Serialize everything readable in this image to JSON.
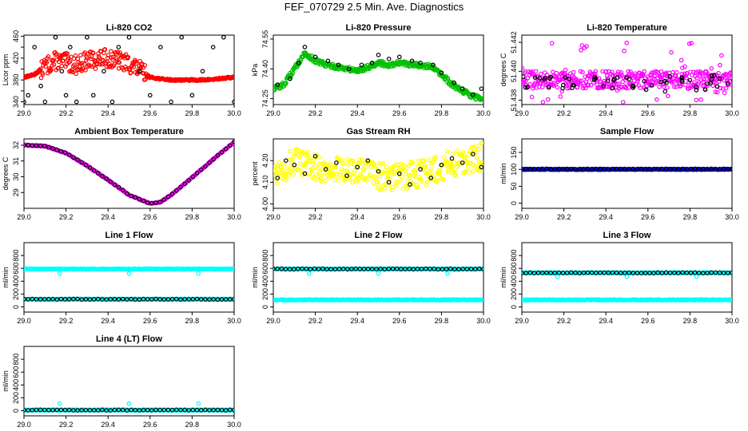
{
  "title": "FEF_070729  2.5 Min. Ave. Diagnostics",
  "chart_data": [
    {
      "type": "scatter",
      "title": "Li-820 CO2",
      "ylabel": "Licor ppm",
      "xlim": [
        29.0,
        30.0
      ],
      "xticks": [
        29.0,
        29.2,
        29.4,
        29.6,
        29.8,
        30.0
      ],
      "ylim": [
        335,
        462
      ],
      "yticks": [
        340,
        360,
        380,
        400,
        420,
        440,
        460
      ],
      "ytick_labels": [
        "340",
        "",
        "380",
        "",
        "420",
        "",
        "460"
      ],
      "color": "#ff0000",
      "gen": "co2",
      "series": [
        {
          "name": "Li-820 CO2",
          "color": "#ff0000",
          "x": [
            29.0,
            29.05,
            29.1,
            29.15,
            29.2,
            29.25,
            29.3,
            29.35,
            29.4,
            29.45,
            29.5,
            29.55,
            29.6,
            29.65,
            29.7,
            29.75,
            29.8,
            29.85,
            29.9,
            29.95,
            30.0
          ],
          "y": [
            385,
            390,
            405,
            415,
            412,
            408,
            415,
            418,
            420,
            415,
            410,
            398,
            385,
            382,
            380,
            380,
            380,
            380,
            381,
            383,
            385
          ]
        }
      ],
      "ref": {
        "name": "reference",
        "color": "#000000",
        "x": [
          29.0,
          29.02,
          29.05,
          29.08,
          29.1,
          29.15,
          29.18,
          29.2,
          29.22,
          29.25,
          29.3,
          29.33,
          29.38,
          29.42,
          29.45,
          29.5,
          29.55,
          29.6,
          29.65,
          29.7,
          29.75,
          29.8,
          29.85,
          29.9,
          29.95,
          30.0
        ],
        "y": [
          340,
          352,
          440,
          369,
          340,
          458,
          396,
          352,
          440,
          340,
          458,
          352,
          396,
          340,
          440,
          458,
          396,
          352,
          440,
          340,
          458,
          352,
          396,
          440,
          458,
          340
        ]
      }
    },
    {
      "type": "scatter",
      "title": "Li-820 Pressure",
      "ylabel": "kPa",
      "xlim": [
        29.0,
        30.0
      ],
      "xticks": [
        29.0,
        29.2,
        29.4,
        29.6,
        29.8,
        30.0
      ],
      "ylim": [
        74.22,
        74.57
      ],
      "yticks": [
        74.25,
        74.4,
        74.55
      ],
      "ytick_labels": [
        "74.25",
        "74.40",
        "74.55"
      ],
      "color": "#00c000",
      "gen": "pressure",
      "series": [
        {
          "name": "Li-820 Pressure",
          "color": "#00c000",
          "x": [
            29.0,
            29.05,
            29.1,
            29.15,
            29.2,
            29.25,
            29.3,
            29.35,
            29.4,
            29.45,
            29.5,
            29.55,
            29.6,
            29.65,
            29.7,
            29.75,
            29.8,
            29.85,
            29.9,
            29.95,
            30.0
          ],
          "y": [
            74.3,
            74.32,
            74.4,
            74.48,
            74.44,
            74.42,
            74.41,
            74.4,
            74.39,
            74.41,
            74.43,
            74.42,
            74.43,
            74.42,
            74.42,
            74.41,
            74.37,
            74.32,
            74.29,
            74.26,
            74.25
          ]
        }
      ],
      "ref": {
        "name": "reference",
        "color": "#000000",
        "x": [
          29.02,
          29.08,
          29.12,
          29.15,
          29.2,
          29.26,
          29.31,
          29.36,
          29.42,
          29.47,
          29.5,
          29.55,
          29.6,
          29.66,
          29.7,
          29.76,
          29.8,
          29.86,
          29.9,
          29.95,
          29.99
        ],
        "y": [
          74.32,
          74.35,
          74.43,
          74.51,
          74.46,
          74.44,
          74.42,
          74.4,
          74.42,
          74.43,
          74.47,
          74.45,
          74.46,
          74.44,
          74.43,
          74.42,
          74.38,
          74.33,
          74.3,
          74.27,
          74.3
        ]
      }
    },
    {
      "type": "scatter",
      "title": "Li-820 Temperature",
      "ylabel": "degrees C",
      "xlim": [
        29.0,
        30.0
      ],
      "xticks": [
        29.0,
        29.2,
        29.4,
        29.6,
        29.8,
        30.0
      ],
      "ylim": [
        51.4377,
        51.4425
      ],
      "yticks": [
        51.438,
        51.44,
        51.442
      ],
      "ytick_labels": [
        "51.438",
        "51.440",
        "51.442"
      ],
      "color": "#ff00ff",
      "gen": "ltemp",
      "series": [
        {
          "name": "Li-820 Temperature",
          "color": "#ff00ff",
          "x": [
            29.0,
            29.5,
            30.0
          ],
          "y": [
            51.4392,
            51.4393,
            51.4392
          ]
        }
      ],
      "ref": {
        "name": "reference",
        "color": "#000000",
        "x": [
          29.05,
          29.12,
          29.2,
          29.28,
          29.35,
          29.42,
          29.5,
          29.58,
          29.65,
          29.72,
          29.8,
          29.88,
          29.95
        ],
        "y": [
          51.4388,
          51.4395,
          51.4391,
          51.4386,
          51.4397,
          51.4392,
          51.4389,
          51.4396,
          51.4387,
          51.4393,
          51.439,
          51.4395,
          51.4388
        ]
      }
    },
    {
      "type": "scatter",
      "title": "Ambient Box Temperature",
      "ylabel": "degrees C",
      "xlim": [
        29.0,
        30.0
      ],
      "xticks": [
        29.0,
        29.2,
        29.4,
        29.6,
        29.8,
        30.0
      ],
      "ylim": [
        28.0,
        32.4
      ],
      "yticks": [
        29,
        30,
        31,
        32
      ],
      "ytick_labels": [
        "29",
        "30",
        "31",
        "32"
      ],
      "color": "#ff00ff",
      "gen": "smooth",
      "series": [
        {
          "name": "Ambient Box Temperature",
          "color": "#ff00ff",
          "x": [
            29.0,
            29.1,
            29.2,
            29.3,
            29.4,
            29.5,
            29.6,
            29.65,
            29.7,
            29.8,
            29.9,
            30.0
          ],
          "y": [
            32.0,
            31.95,
            31.5,
            30.7,
            29.8,
            28.85,
            28.3,
            28.4,
            28.85,
            29.95,
            31.1,
            32.2
          ]
        }
      ],
      "ref": {
        "name": "reference",
        "color": "#000000",
        "x": [
          29.0,
          29.1,
          29.2,
          29.3,
          29.4,
          29.5,
          29.6,
          29.65,
          29.7,
          29.8,
          29.9,
          30.0
        ],
        "y": [
          32.0,
          31.95,
          31.5,
          30.7,
          29.8,
          28.85,
          28.3,
          28.4,
          28.85,
          29.95,
          31.1,
          32.2
        ]
      }
    },
    {
      "type": "scatter",
      "title": "Gas Stream RH",
      "ylabel": "percent",
      "xlim": [
        29.0,
        30.0
      ],
      "xticks": [
        29.0,
        29.2,
        29.4,
        29.6,
        29.8,
        30.0
      ],
      "ylim": [
        3.98,
        4.3
      ],
      "yticks": [
        4.0,
        4.1,
        4.2
      ],
      "ytick_labels": [
        "4.00",
        "4.10",
        "4.20"
      ],
      "color": "#ffff00",
      "gen": "rh",
      "series": [
        {
          "name": "Gas Stream RH",
          "color": "#ffff00",
          "x": [
            29.0,
            29.1,
            29.2,
            29.3,
            29.4,
            29.5,
            29.6,
            29.7,
            29.8,
            29.9,
            30.0
          ],
          "y": [
            4.15,
            4.19,
            4.17,
            4.16,
            4.15,
            4.13,
            4.12,
            4.14,
            4.17,
            4.2,
            4.22
          ]
        }
      ],
      "ref": {
        "name": "reference",
        "color": "#000000",
        "x": [
          29.02,
          29.06,
          29.1,
          29.15,
          29.2,
          29.25,
          29.3,
          29.35,
          29.4,
          29.45,
          29.5,
          29.55,
          29.6,
          29.65,
          29.7,
          29.75,
          29.8,
          29.85,
          29.9,
          29.95,
          29.99
        ],
        "y": [
          4.12,
          4.2,
          4.18,
          4.14,
          4.22,
          4.16,
          4.19,
          4.13,
          4.17,
          4.2,
          4.15,
          4.1,
          4.14,
          4.09,
          4.16,
          4.12,
          4.18,
          4.21,
          4.19,
          4.23,
          4.17
        ]
      }
    },
    {
      "type": "scatter",
      "title": "Sample Flow",
      "ylabel": "ml/min",
      "xlim": [
        29.0,
        30.0
      ],
      "xticks": [
        29.0,
        29.2,
        29.4,
        29.6,
        29.8,
        30.0
      ],
      "ylim": [
        -15,
        190
      ],
      "yticks": [
        0,
        50,
        100,
        150
      ],
      "ytick_labels": [
        "0",
        "50",
        "100",
        "150"
      ],
      "color": "#0000ff",
      "gen": "flat",
      "series": [
        {
          "name": "Sample Flow",
          "color": "#0000ff",
          "x": [
            29.0,
            30.0
          ],
          "y": [
            100,
            100
          ]
        }
      ],
      "ref": {
        "name": "reference",
        "color": "#000000",
        "x": [
          29.0,
          30.0
        ],
        "y": [
          101,
          101
        ]
      }
    },
    {
      "type": "scatter",
      "title": "Line 1 Flow",
      "ylabel": "ml/min",
      "xlim": [
        29.0,
        30.0
      ],
      "xticks": [
        29.0,
        29.2,
        29.4,
        29.6,
        29.8,
        30.0
      ],
      "ylim": [
        -80,
        1000
      ],
      "yticks": [
        0,
        200,
        400,
        600,
        800
      ],
      "ytick_labels": [
        "0",
        "200",
        "400",
        "600",
        "800"
      ],
      "color": "#00ffff",
      "gen": "flat2",
      "series": [
        {
          "name": "Line 1 Flow (upper)",
          "color": "#00ffff",
          "x": [
            29.0,
            30.0
          ],
          "y": [
            590,
            590
          ]
        },
        {
          "name": "Line 1 Flow (lower)",
          "color": "#00ffff",
          "x": [
            29.0,
            30.0
          ],
          "y": [
            120,
            120
          ]
        }
      ],
      "ref": {
        "name": "reference",
        "color": "#000000",
        "x": [
          29.0,
          30.0
        ],
        "y": [
          120,
          120
        ]
      },
      "outliers": {
        "x": [
          29.17,
          29.5,
          29.83
        ],
        "y": [
          520,
          520,
          520
        ]
      }
    },
    {
      "type": "scatter",
      "title": "Line 2 Flow",
      "ylabel": "ml/min",
      "xlim": [
        29.0,
        30.0
      ],
      "xticks": [
        29.0,
        29.2,
        29.4,
        29.6,
        29.8,
        30.0
      ],
      "ylim": [
        -80,
        1000
      ],
      "yticks": [
        0,
        200,
        400,
        600,
        800
      ],
      "ytick_labels": [
        "0",
        "200",
        "400",
        "600",
        "800"
      ],
      "color": "#00ffff",
      "gen": "flat2",
      "series": [
        {
          "name": "Line 2 Flow (upper)",
          "color": "#00ffff",
          "x": [
            29.0,
            30.0
          ],
          "y": [
            590,
            590
          ]
        },
        {
          "name": "Line 2 Flow (lower)",
          "color": "#00ffff",
          "x": [
            29.0,
            30.0
          ],
          "y": [
            110,
            110
          ]
        }
      ],
      "ref": {
        "name": "reference",
        "color": "#000000",
        "x": [
          29.0,
          30.0
        ],
        "y": [
          590,
          590
        ]
      },
      "outliers": {
        "x": [
          29.17,
          29.5,
          29.83
        ],
        "y": [
          520,
          520,
          520
        ]
      }
    },
    {
      "type": "scatter",
      "title": "Line 3 Flow",
      "ylabel": "ml/min",
      "xlim": [
        29.0,
        30.0
      ],
      "xticks": [
        29.0,
        29.2,
        29.4,
        29.6,
        29.8,
        30.0
      ],
      "ylim": [
        -80,
        1000
      ],
      "yticks": [
        0,
        200,
        400,
        600,
        800
      ],
      "ytick_labels": [
        "0",
        "200",
        "400",
        "600",
        "800"
      ],
      "color": "#00ffff",
      "gen": "flat2",
      "series": [
        {
          "name": "Line 3 Flow (upper)",
          "color": "#00ffff",
          "x": [
            29.0,
            30.0
          ],
          "y": [
            530,
            530
          ]
        },
        {
          "name": "Line 3 Flow (lower)",
          "color": "#00ffff",
          "x": [
            29.0,
            30.0
          ],
          "y": [
            110,
            110
          ]
        }
      ],
      "ref": {
        "name": "reference",
        "color": "#000000",
        "x": [
          29.0,
          30.0
        ],
        "y": [
          530,
          530
        ]
      },
      "outliers": {
        "x": [
          29.17,
          29.5,
          29.83
        ],
        "y": [
          470,
          470,
          470
        ]
      }
    },
    {
      "type": "scatter",
      "title": "Line 4 (LT) Flow",
      "ylabel": "ml/min",
      "xlim": [
        29.0,
        30.0
      ],
      "xticks": [
        29.0,
        29.2,
        29.4,
        29.6,
        29.8,
        30.0
      ],
      "ylim": [
        -80,
        1000
      ],
      "yticks": [
        0,
        200,
        400,
        600,
        800
      ],
      "ytick_labels": [
        "0",
        "200",
        "400",
        "600",
        "800"
      ],
      "color": "#00ffff",
      "gen": "flat",
      "series": [
        {
          "name": "Line 4 (LT) Flow",
          "color": "#00ffff",
          "x": [
            29.0,
            30.0
          ],
          "y": [
            10,
            10
          ]
        }
      ],
      "ref": {
        "name": "reference",
        "color": "#000000",
        "x": [
          29.0,
          30.0
        ],
        "y": [
          10,
          10
        ]
      },
      "outliers": {
        "x": [
          29.17,
          29.5,
          29.83
        ],
        "y": [
          110,
          110,
          110
        ]
      }
    }
  ]
}
